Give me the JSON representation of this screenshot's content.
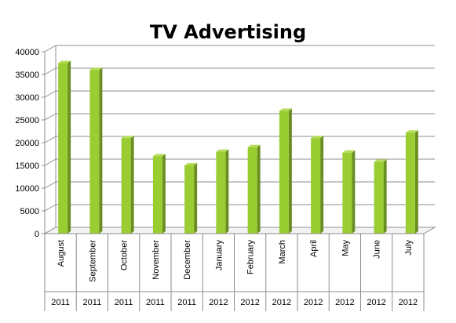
{
  "chart_data": {
    "type": "bar",
    "title": "TV Advertising",
    "categories": [
      "August",
      "September",
      "October",
      "November",
      "December",
      "January",
      "February",
      "March",
      "April",
      "May",
      "June",
      "July"
    ],
    "years": [
      "2011",
      "2011",
      "2011",
      "2011",
      "2011",
      "2012",
      "2012",
      "2012",
      "2012",
      "2012",
      "2012",
      "2012"
    ],
    "values": [
      37500,
      36000,
      21000,
      17000,
      15000,
      18000,
      19000,
      27000,
      21000,
      17800,
      15800,
      22200
    ],
    "ylim": [
      0,
      40000
    ],
    "yticks": [
      0,
      5000,
      10000,
      15000,
      20000,
      25000,
      30000,
      35000,
      40000
    ],
    "grid": true,
    "legend": "none",
    "bar_color": "#9acd32",
    "xlabel": "",
    "ylabel": ""
  }
}
